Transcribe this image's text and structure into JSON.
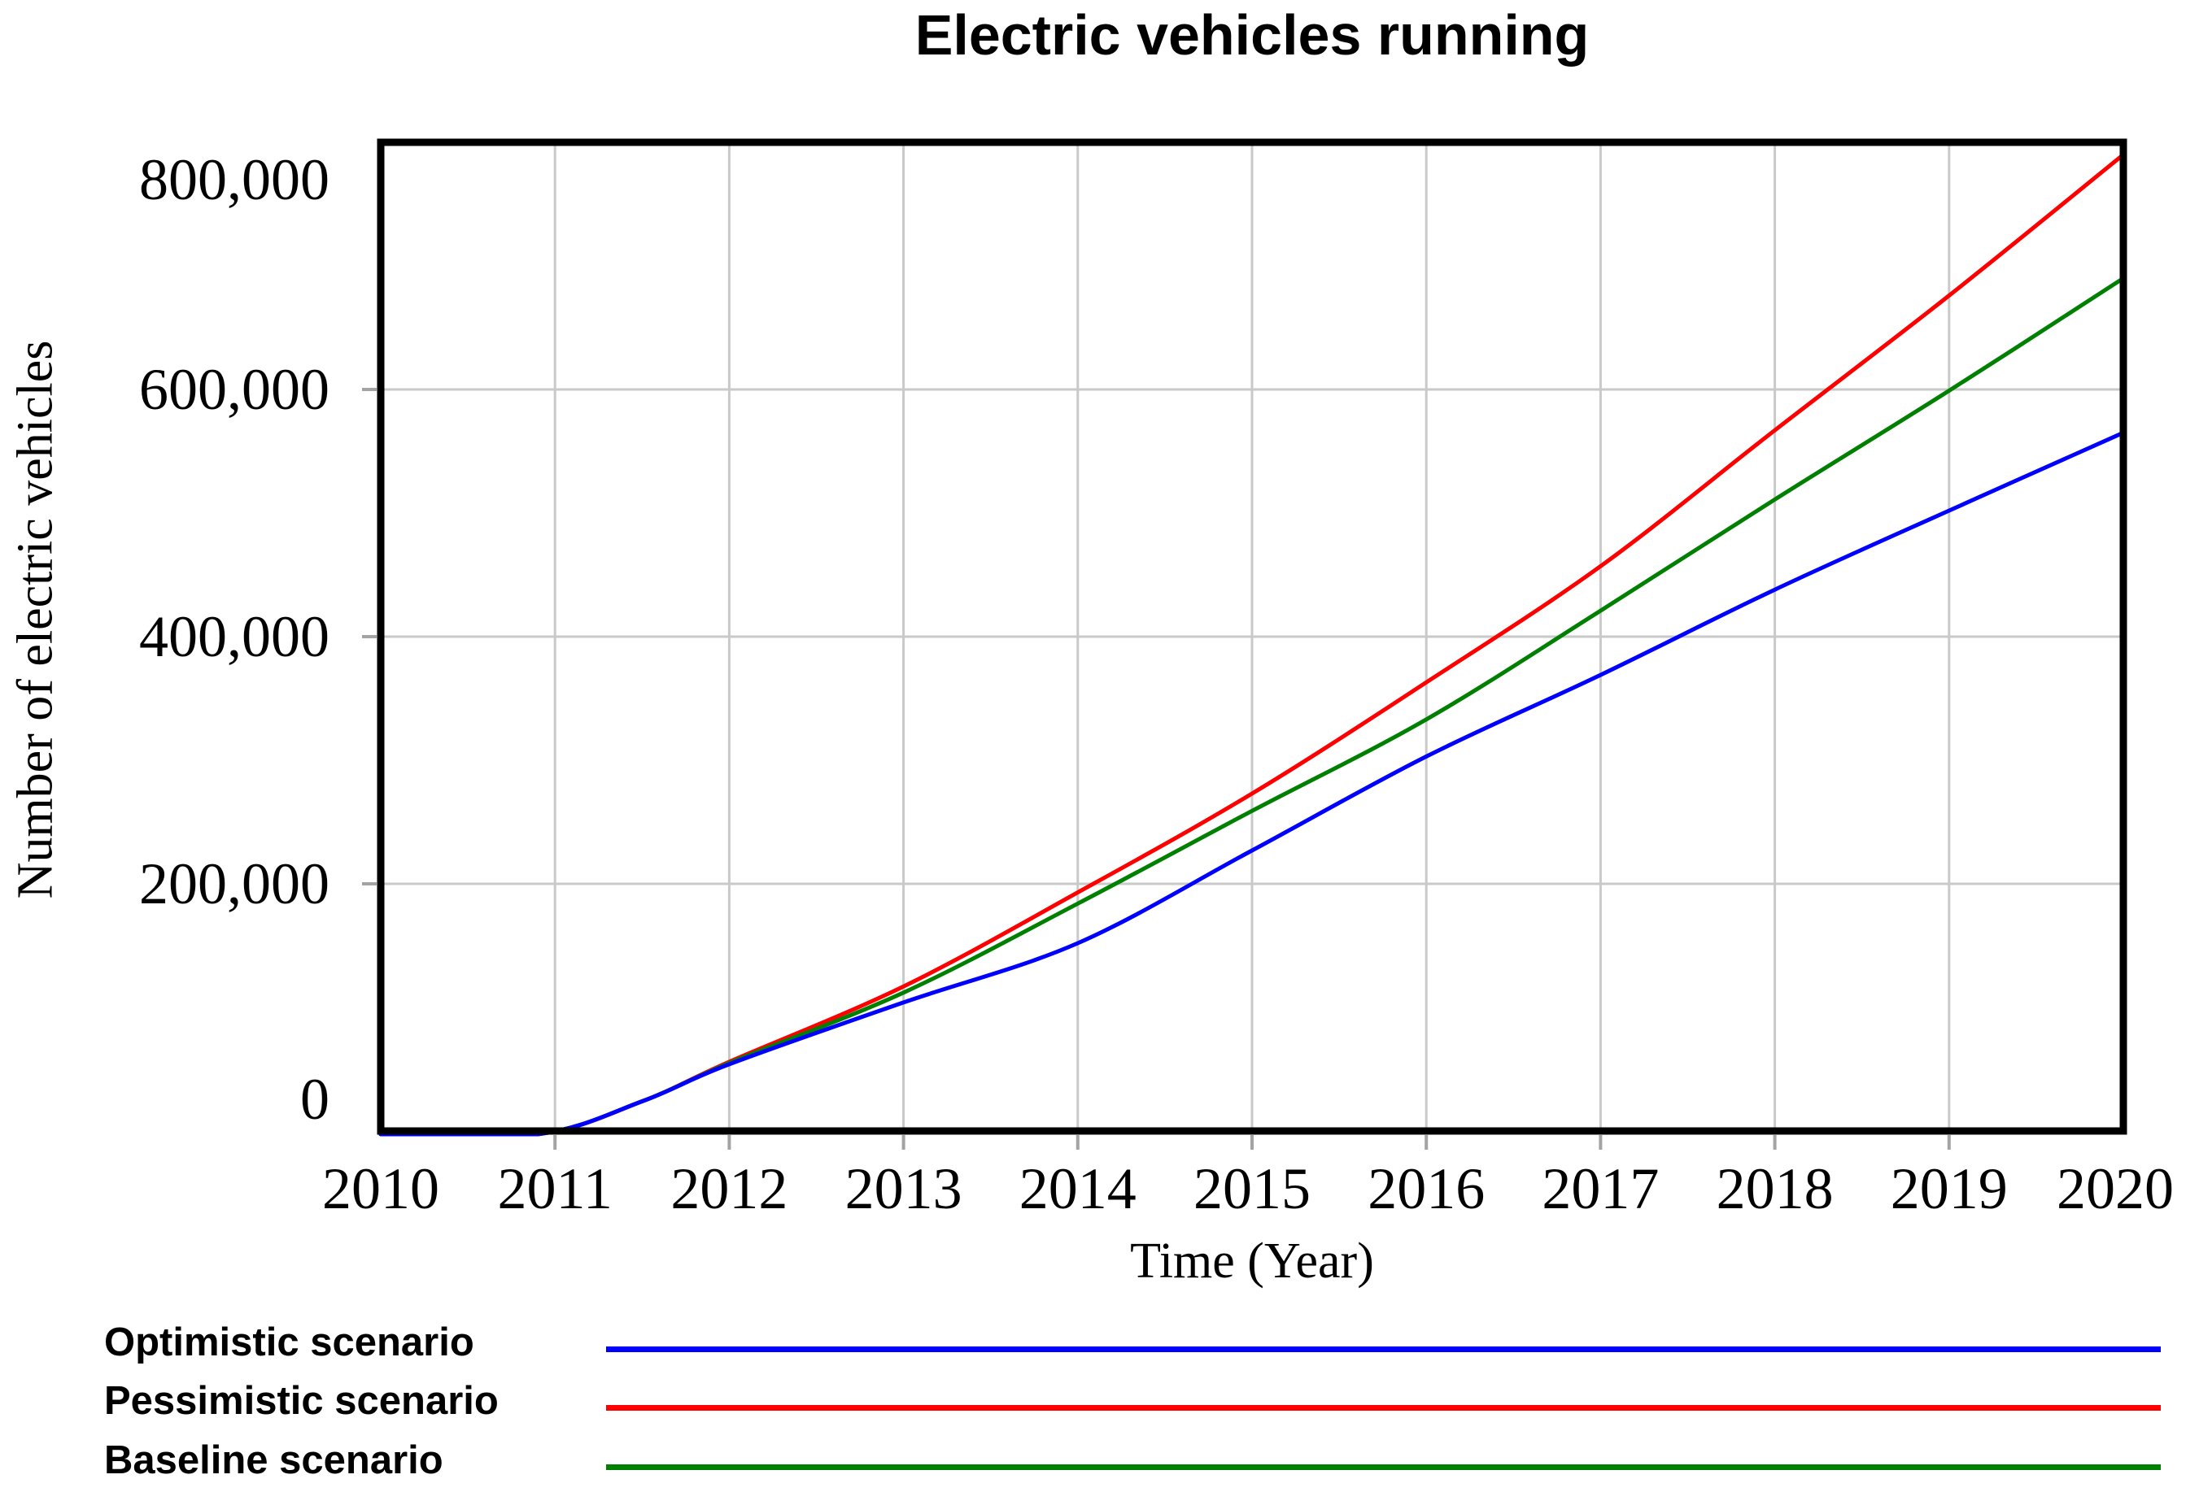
{
  "title": "Electric vehicles running",
  "chart_data": {
    "type": "line",
    "title": "Electric vehicles running",
    "xlabel": "Time (Year)",
    "ylabel": "Number of electric vehicles",
    "xlim": [
      2010,
      2020
    ],
    "ylim": [
      0,
      800000
    ],
    "grid": true,
    "legend_position": "bottom-left",
    "x_ticks": [
      "2010",
      "2011",
      "2012",
      "2013",
      "2014",
      "2015",
      "2016",
      "2017",
      "2018",
      "2019",
      "2020"
    ],
    "y_ticks": [
      {
        "label": "800,000",
        "value": 800000
      },
      {
        "label": "600,000",
        "value": 600000
      },
      {
        "label": "400,000",
        "value": 400000
      },
      {
        "label": "200,000",
        "value": 200000
      },
      {
        "label": "0",
        "value": 0
      }
    ],
    "x": [
      2010,
      2010.9,
      2011.5,
      2012,
      2013,
      2014,
      2015,
      2016,
      2017,
      2018,
      2019,
      2020
    ],
    "series": [
      {
        "name": "Optimistic scenario",
        "color": "#0000ff",
        "values": [
          0,
          0,
          24000,
          54000,
          104000,
          152000,
          227000,
          303000,
          369000,
          438000,
          502000,
          565000
        ]
      },
      {
        "name": "Pessimistic scenario",
        "color": "#ff0000",
        "values": [
          0,
          0,
          24000,
          56000,
          117000,
          193000,
          273000,
          363000,
          457000,
          567000,
          676000,
          790000
        ]
      },
      {
        "name": "Baseline scenario",
        "color": "#008000",
        "values": [
          0,
          0,
          24000,
          55000,
          112000,
          184000,
          259000,
          333000,
          421000,
          511000,
          599000,
          690000
        ]
      }
    ]
  },
  "colors": {
    "grid": "#c9c9c9",
    "tick": "#a3a3a3",
    "frame": "#000000",
    "background": "#ffffff"
  }
}
